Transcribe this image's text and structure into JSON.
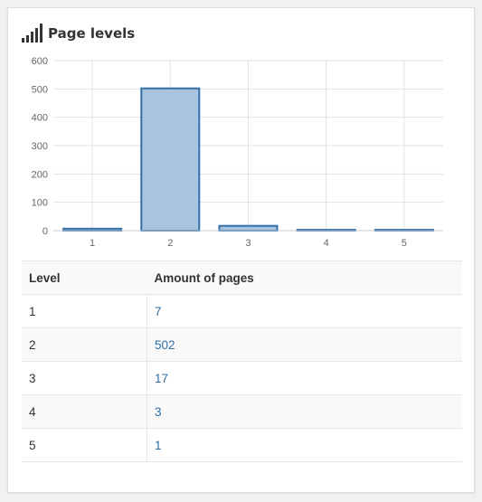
{
  "header": {
    "title": "Page levels",
    "icon": "signal-bars-icon"
  },
  "chart_data": {
    "type": "bar",
    "categories": [
      "1",
      "2",
      "3",
      "4",
      "5"
    ],
    "values": [
      7,
      502,
      17,
      3,
      1
    ],
    "ylim": [
      0,
      600
    ],
    "yticks": [
      0,
      100,
      200,
      300,
      400,
      500,
      600
    ],
    "grid": true,
    "bar_fill": "#a8c4df",
    "bar_stroke": "#336fa8",
    "grid_color": "#dde2ea"
  },
  "table": {
    "headers": [
      "Level",
      "Amount of pages"
    ],
    "rows": [
      {
        "level": "1",
        "amount": "7"
      },
      {
        "level": "2",
        "amount": "502"
      },
      {
        "level": "3",
        "amount": "17"
      },
      {
        "level": "4",
        "amount": "3"
      },
      {
        "level": "5",
        "amount": "1"
      }
    ],
    "link_color": "#2f6fa6"
  }
}
